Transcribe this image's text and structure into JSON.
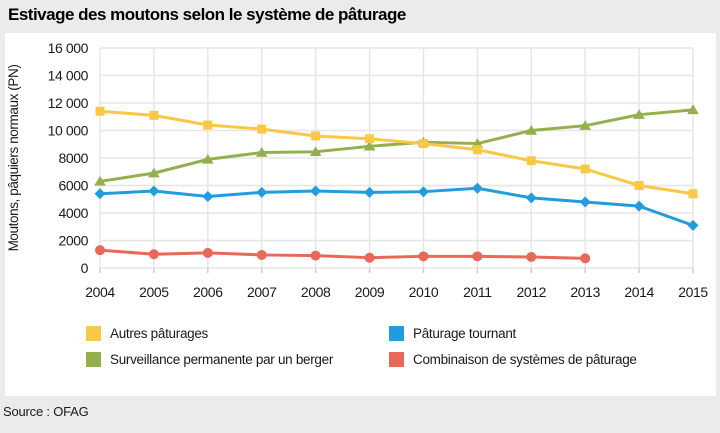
{
  "source": {
    "text": "Source : OFAG"
  },
  "colors": {
    "background": "#ebebeb",
    "panel": "#ffffff",
    "grid": "#e6e6e6",
    "tick": "#cccccc",
    "axis_text": "#1a1a1a",
    "title_text": "#000000"
  },
  "chart_data": {
    "type": "line",
    "title": "Estivage des moutons selon le système de pâturage",
    "ylabel": "Moutons, pâquiers normaux (PN)",
    "xlabel": "",
    "x": [
      2004,
      2005,
      2006,
      2007,
      2008,
      2009,
      2010,
      2011,
      2012,
      2013,
      2014,
      2015
    ],
    "ylim": [
      0,
      16000
    ],
    "ytick_step": 2000,
    "ytick_labels": [
      "0",
      "2000",
      "4000",
      "6000",
      "8000",
      "10 000",
      "12 000",
      "14 000",
      "16 000"
    ],
    "grid": true,
    "legend_position": "bottom",
    "series": [
      {
        "name": "Autres pâturages",
        "color": "#f9c846",
        "marker": "square",
        "values": [
          11400,
          11100,
          10400,
          10100,
          9600,
          9400,
          9050,
          8600,
          7800,
          7200,
          6000,
          5400
        ]
      },
      {
        "name": "Surveillance permanente par un berger",
        "color": "#93b04d",
        "marker": "triangle",
        "values": [
          6300,
          6900,
          7900,
          8400,
          8450,
          8850,
          9150,
          9050,
          10000,
          10350,
          11150,
          11500
        ]
      },
      {
        "name": "Pâturage tournant",
        "color": "#219cdf",
        "marker": "diamond",
        "values": [
          5400,
          5600,
          5200,
          5500,
          5600,
          5500,
          5550,
          5800,
          5100,
          4800,
          4500,
          3100
        ]
      },
      {
        "name": "Combinaison de systèmes de pâturage",
        "color": "#e8695a",
        "marker": "circle",
        "values": [
          1300,
          1000,
          1100,
          950,
          900,
          750,
          850,
          850,
          800,
          700,
          null,
          null
        ]
      }
    ]
  }
}
